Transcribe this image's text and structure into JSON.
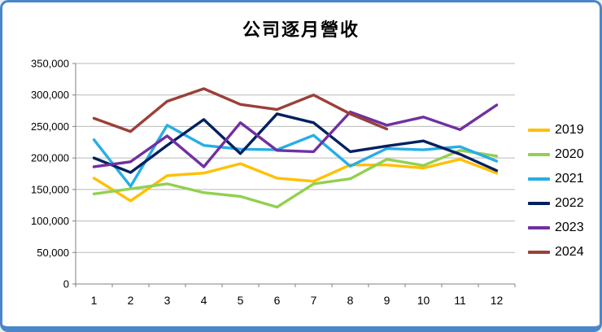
{
  "window": {
    "border_color": "#4a86c8",
    "background": "#ffffff"
  },
  "chart_data": {
    "type": "line",
    "title": "公司逐月營收",
    "xlabel": "",
    "ylabel": "",
    "categories": [
      "1",
      "2",
      "3",
      "4",
      "5",
      "6",
      "7",
      "8",
      "9",
      "10",
      "11",
      "12"
    ],
    "series": [
      {
        "name": "2019",
        "color": "#FFC000",
        "values": [
          168000,
          132000,
          172000,
          176000,
          191000,
          168000,
          163000,
          189000,
          189000,
          184000,
          198000,
          176000
        ]
      },
      {
        "name": "2020",
        "color": "#92D050",
        "values": [
          143000,
          151000,
          159000,
          145000,
          139000,
          122000,
          159000,
          167000,
          198000,
          188000,
          212000,
          203000
        ]
      },
      {
        "name": "2021",
        "color": "#27AEE4",
        "values": [
          229000,
          155000,
          252000,
          220000,
          214000,
          213000,
          236000,
          187000,
          215000,
          213000,
          218000,
          195000
        ]
      },
      {
        "name": "2022",
        "color": "#002060",
        "values": [
          200000,
          177000,
          220000,
          261000,
          207000,
          270000,
          256000,
          210000,
          219000,
          227000,
          206000,
          180000
        ]
      },
      {
        "name": "2023",
        "color": "#7030A0",
        "values": [
          186000,
          194000,
          235000,
          186000,
          256000,
          212000,
          210000,
          273000,
          252000,
          265000,
          245000,
          284000
        ]
      },
      {
        "name": "2024",
        "color": "#9A4038",
        "values": [
          263000,
          242000,
          290000,
          310000,
          285000,
          277000,
          300000,
          270000,
          246000
        ]
      }
    ],
    "ylim": [
      0,
      350000
    ],
    "ytick_step": 50000,
    "ytick_labels": [
      "0",
      "50,000",
      "100,000",
      "150,000",
      "200,000",
      "250,000",
      "300,000",
      "350,000"
    ],
    "grid": true,
    "legend_position": "right",
    "colors": {
      "gridline": "#b9b9b9",
      "axis": "#808080",
      "tick_text": "#000000"
    }
  }
}
